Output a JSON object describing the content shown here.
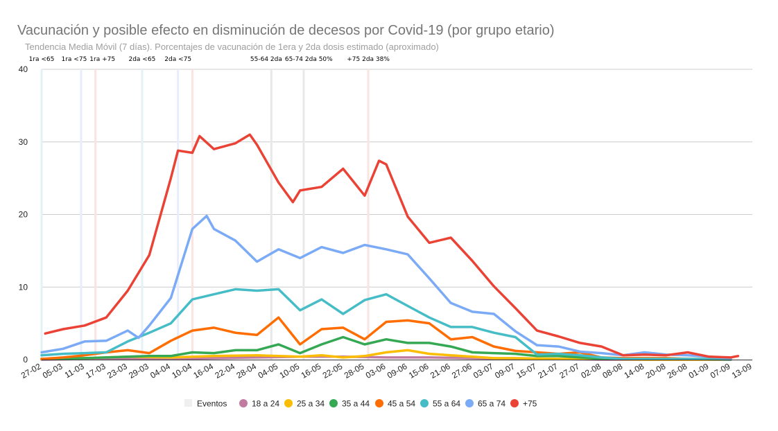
{
  "chart_data": {
    "type": "line",
    "title": "Vacunación y posible efecto en disminución de decesos por Covid-19 (por grupo etario)",
    "subtitle": "Tendencia Media Móvil (7 días). Porcentajes de vacunación de 1era y 2da dosis estimado (aproximado)",
    "xlabel": "",
    "ylabel": "",
    "ylim": [
      0,
      40
    ],
    "yticks": [
      "0",
      "10",
      "20",
      "30",
      "40"
    ],
    "grid": true,
    "legend_position": "bottom",
    "xticks": [
      "27-02",
      "05-03",
      "11-03",
      "17-03",
      "23-03",
      "29-03",
      "04-04",
      "10-04",
      "16-04",
      "22-04",
      "28-04",
      "04-05",
      "10-05",
      "16-05",
      "22-05",
      "28-05",
      "03-06",
      "09-06",
      "15-06",
      "21-06",
      "27-06",
      "03-07",
      "09-07",
      "15-07",
      "21-07",
      "27-07",
      "02-08",
      "08-08",
      "14-08",
      "20-08",
      "26-08",
      "01-09",
      "07-09",
      "13-09"
    ],
    "events": {
      "name": "Eventos",
      "color": "#efefef",
      "items": [
        {
          "date": "27-02",
          "label": "1ra <65",
          "color": "#e3f2f6"
        },
        {
          "date": "10-03",
          "label": "1ra <75",
          "color": "#e6eefb"
        },
        {
          "date": "14-03",
          "label": "1ra +75",
          "color": "#fbe3e1"
        },
        {
          "date": "27-03",
          "label": "2da <65",
          "color": "#e3f2f6"
        },
        {
          "date": "06-04",
          "label": "2da <75",
          "color": "#e6eefb"
        },
        {
          "date": "10-04",
          "label": "",
          "color": "#fbe3e1"
        },
        {
          "date": "02-05",
          "label": "55-64 2da",
          "color": "#e8e8e8"
        },
        {
          "date": "11-05",
          "label": "65-74 2da 50%",
          "color": "#e8e8e8"
        },
        {
          "date": "29-05",
          "label": "+75 2da 38%",
          "color": "#fbe3e1"
        }
      ]
    },
    "series": [
      {
        "name": "18 a 24",
        "color": "#c27ba0",
        "points": [
          [
            "27-02",
            0.0
          ],
          [
            "11-03",
            0.1
          ],
          [
            "23-03",
            0.1
          ],
          [
            "04-04",
            0.1
          ],
          [
            "16-04",
            0.2
          ],
          [
            "28-04",
            0.3
          ],
          [
            "10-05",
            0.4
          ],
          [
            "22-05",
            0.4
          ],
          [
            "03-06",
            0.3
          ],
          [
            "15-06",
            0.3
          ],
          [
            "27-06",
            0.2
          ],
          [
            "09-07",
            0.1
          ],
          [
            "21-07",
            0.1
          ],
          [
            "02-08",
            0.0
          ],
          [
            "14-08",
            0.0
          ],
          [
            "26-08",
            0.0
          ],
          [
            "07-09",
            0.0
          ]
        ]
      },
      {
        "name": "25 a 34",
        "color": "#fbbc04",
        "points": [
          [
            "27-02",
            0.1
          ],
          [
            "11-03",
            0.2
          ],
          [
            "23-03",
            0.4
          ],
          [
            "04-04",
            0.3
          ],
          [
            "16-04",
            0.5
          ],
          [
            "28-04",
            0.6
          ],
          [
            "04-05",
            0.5
          ],
          [
            "10-05",
            0.4
          ],
          [
            "16-05",
            0.6
          ],
          [
            "22-05",
            0.3
          ],
          [
            "28-05",
            0.5
          ],
          [
            "03-06",
            1.0
          ],
          [
            "09-06",
            1.3
          ],
          [
            "15-06",
            0.8
          ],
          [
            "21-06",
            0.6
          ],
          [
            "27-06",
            0.4
          ],
          [
            "03-07",
            0.2
          ],
          [
            "09-07",
            0.2
          ],
          [
            "21-07",
            0.1
          ],
          [
            "02-08",
            0.1
          ],
          [
            "14-08",
            0.0
          ],
          [
            "26-08",
            0.0
          ],
          [
            "07-09",
            0.0
          ]
        ]
      },
      {
        "name": "35 a 44",
        "color": "#34a853",
        "points": [
          [
            "27-02",
            0.1
          ],
          [
            "11-03",
            0.2
          ],
          [
            "23-03",
            0.4
          ],
          [
            "29-03",
            0.5
          ],
          [
            "04-04",
            0.5
          ],
          [
            "10-04",
            1.0
          ],
          [
            "16-04",
            0.9
          ],
          [
            "22-04",
            1.3
          ],
          [
            "28-04",
            1.3
          ],
          [
            "04-05",
            2.1
          ],
          [
            "10-05",
            0.9
          ],
          [
            "16-05",
            2.1
          ],
          [
            "22-05",
            3.1
          ],
          [
            "28-05",
            2.1
          ],
          [
            "03-06",
            2.8
          ],
          [
            "09-06",
            2.3
          ],
          [
            "15-06",
            2.3
          ],
          [
            "21-06",
            1.8
          ],
          [
            "27-06",
            1.0
          ],
          [
            "03-07",
            0.9
          ],
          [
            "09-07",
            0.8
          ],
          [
            "15-07",
            0.5
          ],
          [
            "21-07",
            0.5
          ],
          [
            "27-07",
            0.3
          ],
          [
            "02-08",
            0.1
          ],
          [
            "14-08",
            0.1
          ],
          [
            "26-08",
            0.1
          ],
          [
            "07-09",
            0.0
          ]
        ]
      },
      {
        "name": "45 a 54",
        "color": "#ff6d01",
        "points": [
          [
            "27-02",
            0.1
          ],
          [
            "05-03",
            0.3
          ],
          [
            "11-03",
            0.6
          ],
          [
            "17-03",
            1.0
          ],
          [
            "23-03",
            1.3
          ],
          [
            "29-03",
            0.9
          ],
          [
            "04-04",
            2.6
          ],
          [
            "10-04",
            4.0
          ],
          [
            "16-04",
            4.4
          ],
          [
            "22-04",
            3.7
          ],
          [
            "28-04",
            3.4
          ],
          [
            "04-05",
            5.8
          ],
          [
            "10-05",
            2.1
          ],
          [
            "16-05",
            4.2
          ],
          [
            "22-05",
            4.4
          ],
          [
            "28-05",
            2.8
          ],
          [
            "03-06",
            5.2
          ],
          [
            "09-06",
            5.4
          ],
          [
            "15-06",
            5.0
          ],
          [
            "21-06",
            2.8
          ],
          [
            "27-06",
            3.1
          ],
          [
            "03-07",
            1.8
          ],
          [
            "09-07",
            1.2
          ],
          [
            "15-07",
            1.0
          ],
          [
            "21-07",
            0.8
          ],
          [
            "27-07",
            1.0
          ],
          [
            "02-08",
            0.3
          ],
          [
            "08-08",
            0.2
          ],
          [
            "14-08",
            0.2
          ],
          [
            "20-08",
            0.2
          ],
          [
            "26-08",
            0.1
          ],
          [
            "01-09",
            0.1
          ],
          [
            "07-09",
            0.0
          ]
        ]
      },
      {
        "name": "55 a 64",
        "color": "#46bdc6",
        "points": [
          [
            "27-02",
            0.6
          ],
          [
            "05-03",
            0.8
          ],
          [
            "11-03",
            0.9
          ],
          [
            "17-03",
            1.0
          ],
          [
            "23-03",
            2.5
          ],
          [
            "29-03",
            3.7
          ],
          [
            "04-04",
            5.0
          ],
          [
            "10-04",
            8.3
          ],
          [
            "16-04",
            9.0
          ],
          [
            "22-04",
            9.7
          ],
          [
            "28-04",
            9.5
          ],
          [
            "04-05",
            9.7
          ],
          [
            "10-05",
            6.8
          ],
          [
            "16-05",
            8.3
          ],
          [
            "22-05",
            6.3
          ],
          [
            "28-05",
            8.2
          ],
          [
            "03-06",
            9.0
          ],
          [
            "09-06",
            7.4
          ],
          [
            "15-06",
            5.8
          ],
          [
            "21-06",
            4.5
          ],
          [
            "27-06",
            4.5
          ],
          [
            "03-07",
            3.7
          ],
          [
            "09-07",
            3.1
          ],
          [
            "15-07",
            0.7
          ],
          [
            "21-07",
            0.8
          ],
          [
            "27-07",
            0.6
          ],
          [
            "02-08",
            0.3
          ],
          [
            "08-08",
            0.1
          ],
          [
            "14-08",
            0.1
          ],
          [
            "20-08",
            0.1
          ],
          [
            "26-08",
            0.1
          ],
          [
            "01-09",
            0.1
          ],
          [
            "07-09",
            0.0
          ]
        ]
      },
      {
        "name": "65 a 74",
        "color": "#7baaf7",
        "points": [
          [
            "27-02",
            1.0
          ],
          [
            "05-03",
            1.5
          ],
          [
            "11-03",
            2.5
          ],
          [
            "17-03",
            2.6
          ],
          [
            "23-03",
            4.0
          ],
          [
            "26-03",
            3.0
          ],
          [
            "29-03",
            4.7
          ],
          [
            "04-04",
            8.5
          ],
          [
            "10-04",
            18.0
          ],
          [
            "14-04",
            19.8
          ],
          [
            "16-04",
            18.0
          ],
          [
            "22-04",
            16.4
          ],
          [
            "28-04",
            13.5
          ],
          [
            "04-05",
            15.2
          ],
          [
            "10-05",
            14.0
          ],
          [
            "16-05",
            15.5
          ],
          [
            "22-05",
            14.7
          ],
          [
            "28-05",
            15.8
          ],
          [
            "03-06",
            15.2
          ],
          [
            "09-06",
            14.5
          ],
          [
            "15-06",
            11.2
          ],
          [
            "21-06",
            7.8
          ],
          [
            "27-06",
            6.6
          ],
          [
            "03-07",
            6.3
          ],
          [
            "09-07",
            3.9
          ],
          [
            "15-07",
            2.0
          ],
          [
            "21-07",
            1.8
          ],
          [
            "27-07",
            1.1
          ],
          [
            "02-08",
            0.9
          ],
          [
            "08-08",
            0.6
          ],
          [
            "14-08",
            1.0
          ],
          [
            "20-08",
            0.7
          ],
          [
            "26-08",
            0.6
          ],
          [
            "01-09",
            0.4
          ],
          [
            "07-09",
            0.2
          ]
        ]
      },
      {
        "name": "+75",
        "color": "#ea4335",
        "points": [
          [
            "28-02",
            3.6
          ],
          [
            "05-03",
            4.2
          ],
          [
            "11-03",
            4.7
          ],
          [
            "17-03",
            5.8
          ],
          [
            "23-03",
            9.5
          ],
          [
            "29-03",
            14.4
          ],
          [
            "04-04",
            25.0
          ],
          [
            "06-04",
            28.8
          ],
          [
            "10-04",
            28.5
          ],
          [
            "12-04",
            30.8
          ],
          [
            "16-04",
            29.0
          ],
          [
            "22-04",
            29.8
          ],
          [
            "26-04",
            31.0
          ],
          [
            "28-04",
            29.6
          ],
          [
            "04-05",
            24.4
          ],
          [
            "08-05",
            21.7
          ],
          [
            "10-05",
            23.3
          ],
          [
            "16-05",
            23.8
          ],
          [
            "22-05",
            26.3
          ],
          [
            "28-05",
            22.6
          ],
          [
            "01-06",
            27.4
          ],
          [
            "03-06",
            26.9
          ],
          [
            "09-06",
            19.7
          ],
          [
            "15-06",
            16.1
          ],
          [
            "21-06",
            16.8
          ],
          [
            "27-06",
            13.6
          ],
          [
            "03-07",
            10.1
          ],
          [
            "09-07",
            7.1
          ],
          [
            "15-07",
            4.0
          ],
          [
            "21-07",
            3.2
          ],
          [
            "27-07",
            2.3
          ],
          [
            "02-08",
            1.8
          ],
          [
            "08-08",
            0.6
          ],
          [
            "14-08",
            0.7
          ],
          [
            "20-08",
            0.6
          ],
          [
            "26-08",
            1.0
          ],
          [
            "01-09",
            0.4
          ],
          [
            "07-09",
            0.3
          ],
          [
            "09-09",
            0.5
          ]
        ]
      }
    ]
  }
}
